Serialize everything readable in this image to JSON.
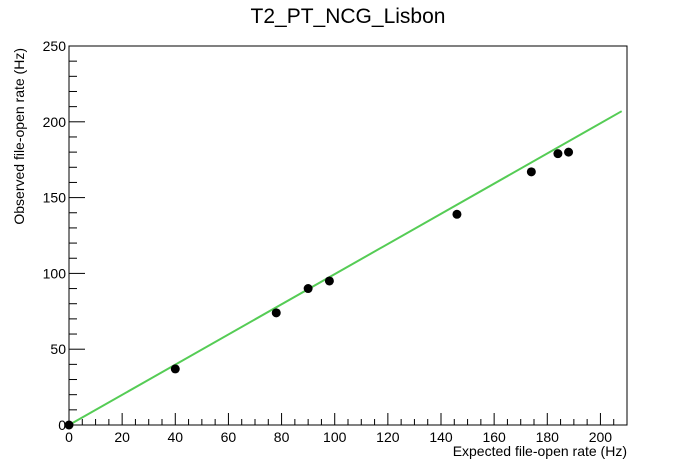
{
  "chart_data": {
    "type": "scatter",
    "title": "T2_PT_NCG_Lisbon",
    "xlabel": "Expected file-open rate (Hz)",
    "ylabel": "Observed file-open rate (Hz)",
    "xlim": [
      0,
      210
    ],
    "ylim": [
      0,
      250
    ],
    "x_ticks": [
      0,
      20,
      40,
      60,
      80,
      100,
      120,
      140,
      160,
      180,
      200
    ],
    "y_ticks": [
      0,
      50,
      100,
      150,
      200,
      250
    ],
    "grid": false,
    "legend": "none",
    "series": [
      {
        "x": [
          0,
          40,
          78,
          90,
          98,
          146,
          174,
          184,
          188
        ],
        "y": [
          0,
          37,
          74,
          90,
          95,
          139,
          167,
          179,
          180
        ],
        "color": "#000000"
      }
    ],
    "fit_line": {
      "x": [
        0,
        208
      ],
      "y": [
        0,
        207
      ],
      "color": "#55cc55"
    }
  }
}
